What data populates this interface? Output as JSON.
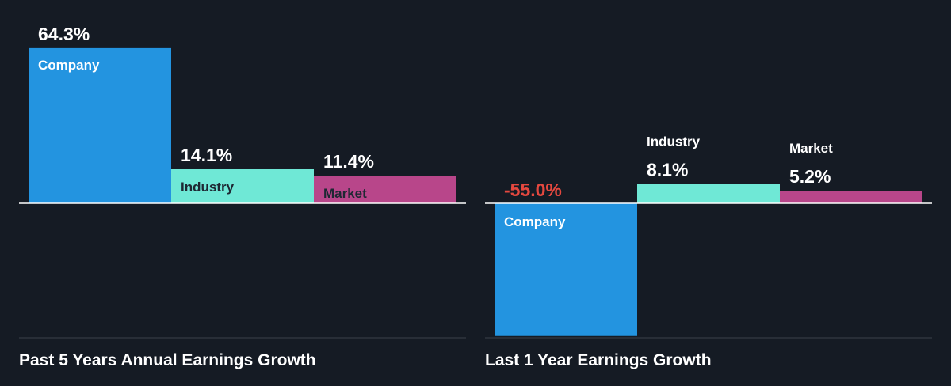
{
  "chart_data": [
    {
      "type": "bar",
      "title": "Past 5 Years Annual Earnings Growth",
      "categories": [
        "Company",
        "Industry",
        "Market"
      ],
      "values": [
        64.3,
        14.1,
        11.4
      ],
      "value_labels": [
        "64.3%",
        "14.1%",
        "11.4%"
      ],
      "colors": [
        "#2394e0",
        "#6fe8d6",
        "#b8468a"
      ],
      "value_label_colors": [
        "#ffffff",
        "#ffffff",
        "#ffffff"
      ]
    },
    {
      "type": "bar",
      "title": "Last 1 Year Earnings Growth",
      "categories": [
        "Company",
        "Industry",
        "Market"
      ],
      "values": [
        -55.0,
        8.1,
        5.2
      ],
      "value_labels": [
        "-55.0%",
        "8.1%",
        "5.2%"
      ],
      "colors": [
        "#2394e0",
        "#6fe8d6",
        "#b8468a"
      ],
      "value_label_colors": [
        "#e5483f",
        "#ffffff",
        "#ffffff"
      ]
    }
  ],
  "colors": {
    "background": "#151b24",
    "axis": "#ffffff",
    "baseline": "#3a404a",
    "text": "#ffffff",
    "dark_text": "#1e2833"
  }
}
